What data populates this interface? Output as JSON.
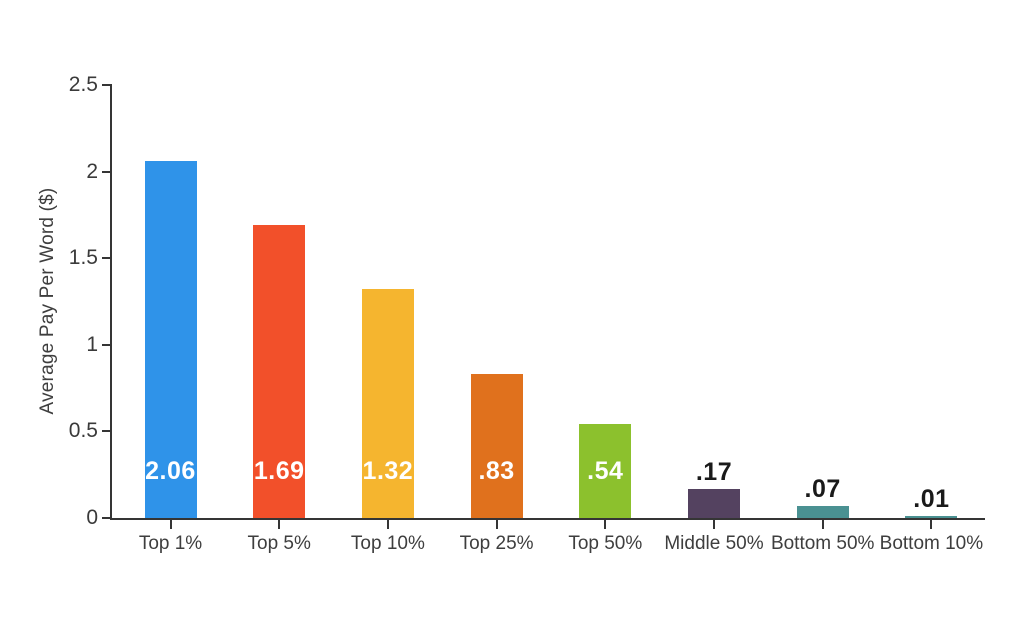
{
  "chart_data": {
    "type": "bar",
    "title": "",
    "xlabel": "",
    "ylabel": "Average Pay Per Word ($)",
    "ylim": [
      0,
      2.5
    ],
    "grid": false,
    "legend": "none",
    "categories": [
      "Top 1%",
      "Top 5%",
      "Top 10%",
      "Top 25%",
      "Top 50%",
      "Middle 50%",
      "Bottom 50%",
      "Bottom 10%"
    ],
    "values": [
      2.06,
      1.69,
      1.32,
      0.83,
      0.54,
      0.17,
      0.07,
      0.01
    ],
    "value_labels": [
      "2.06",
      "1.69",
      "1.32",
      ".83",
      ".54",
      ".17",
      ".07",
      ".01"
    ],
    "bar_colors": [
      "#2F93E9",
      "#F2502A",
      "#F5B52F",
      "#E0711D",
      "#8CC12D",
      "#544260",
      "#4A9192",
      "#4A9192"
    ],
    "y_ticks": [
      {
        "value": 0,
        "label": "0"
      },
      {
        "value": 0.5,
        "label": "0.5"
      },
      {
        "value": 1,
        "label": "1"
      },
      {
        "value": 1.5,
        "label": "1.5"
      },
      {
        "value": 2,
        "label": "2"
      },
      {
        "value": 2.5,
        "label": "2.5"
      }
    ],
    "colors": {
      "axis": "#353535",
      "tick_text": "#3a3a3a",
      "category_text": "#3e3e3e",
      "value_label_inside": "#ffffff",
      "value_label_outside": "#1a1a1a",
      "background": "#ffffff"
    }
  }
}
